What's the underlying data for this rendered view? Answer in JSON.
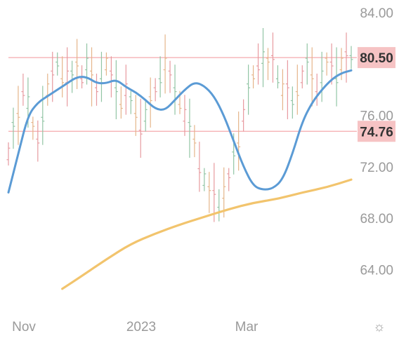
{
  "chart_data": {
    "type": "line",
    "ylim": [
      62,
      84
    ],
    "y_ticks": [
      {
        "value": 84,
        "label": "84.00"
      },
      {
        "value": 76,
        "label": "76.00"
      },
      {
        "value": 72,
        "label": "72.00"
      },
      {
        "value": 68,
        "label": "68.00"
      },
      {
        "value": 64,
        "label": "64.00"
      }
    ],
    "x_ticks": [
      "Nov",
      "2023",
      "Mar"
    ],
    "price_levels": [
      {
        "value": 80.5,
        "label": "80.50"
      },
      {
        "value": 74.76,
        "label": "74.76"
      }
    ],
    "series": [
      {
        "kind": "ohlc-bars",
        "x": [
          0,
          2,
          4,
          6,
          8,
          10,
          12,
          14,
          16,
          18,
          20,
          22,
          24,
          26,
          28,
          30,
          32,
          34,
          36,
          38,
          40,
          42,
          44,
          46,
          48,
          50,
          52,
          54,
          56,
          58,
          60,
          62,
          64,
          66,
          68,
          70,
          72,
          74,
          76,
          78,
          80,
          82,
          84,
          86,
          88,
          90,
          92,
          94,
          96,
          98,
          100,
          102,
          104,
          106,
          108,
          110,
          112,
          114,
          116,
          118,
          120,
          122,
          124,
          126,
          128,
          130,
          132,
          134,
          136,
          138,
          140
        ],
        "values": [
          73,
          75,
          76,
          78,
          77,
          75,
          74,
          76,
          78,
          79,
          80,
          79,
          79,
          79,
          80,
          79,
          80,
          79,
          78,
          79,
          80,
          79,
          78,
          77,
          78,
          77,
          76,
          75,
          76,
          77,
          78,
          79,
          80,
          79,
          78,
          77,
          76,
          75,
          74,
          72,
          71,
          70,
          70,
          69,
          70,
          71,
          73,
          74,
          76,
          78,
          79,
          80,
          80.5,
          80,
          80.5,
          79,
          78,
          78,
          77,
          78,
          79,
          80,
          79,
          78,
          79,
          80,
          80,
          79,
          80,
          80.5,
          80.5
        ]
      },
      {
        "kind": "ema-short",
        "color": "#5b9bd5",
        "x": [
          0,
          4,
          8,
          12,
          16,
          20,
          24,
          28,
          32,
          36,
          40,
          44,
          48,
          52,
          56,
          60,
          64,
          68,
          72,
          76,
          80,
          84,
          88,
          92,
          96,
          100,
          104,
          108,
          112,
          116,
          120,
          124,
          128,
          132,
          136,
          140
        ],
        "values": [
          70,
          73,
          76,
          77,
          77.5,
          78,
          78.5,
          79,
          79,
          78.5,
          78.5,
          78.8,
          78.2,
          77.8,
          77.2,
          76.5,
          76.4,
          77.2,
          78,
          78.6,
          78.3,
          77.5,
          76,
          74,
          72,
          70.5,
          70.2,
          70.3,
          71,
          73,
          75.5,
          77,
          78,
          78.8,
          79.3,
          79.5
        ]
      },
      {
        "kind": "ma-long",
        "color": "#f2c46d",
        "x": [
          22,
          30,
          40,
          50,
          60,
          70,
          80,
          90,
          100,
          110,
          120,
          130,
          140
        ],
        "values": [
          62.5,
          63.5,
          64.8,
          66,
          66.8,
          67.5,
          68.1,
          68.7,
          69.2,
          69.5,
          70,
          70.4,
          71
        ]
      }
    ]
  },
  "settings": {
    "gear_glyph": "☼"
  }
}
